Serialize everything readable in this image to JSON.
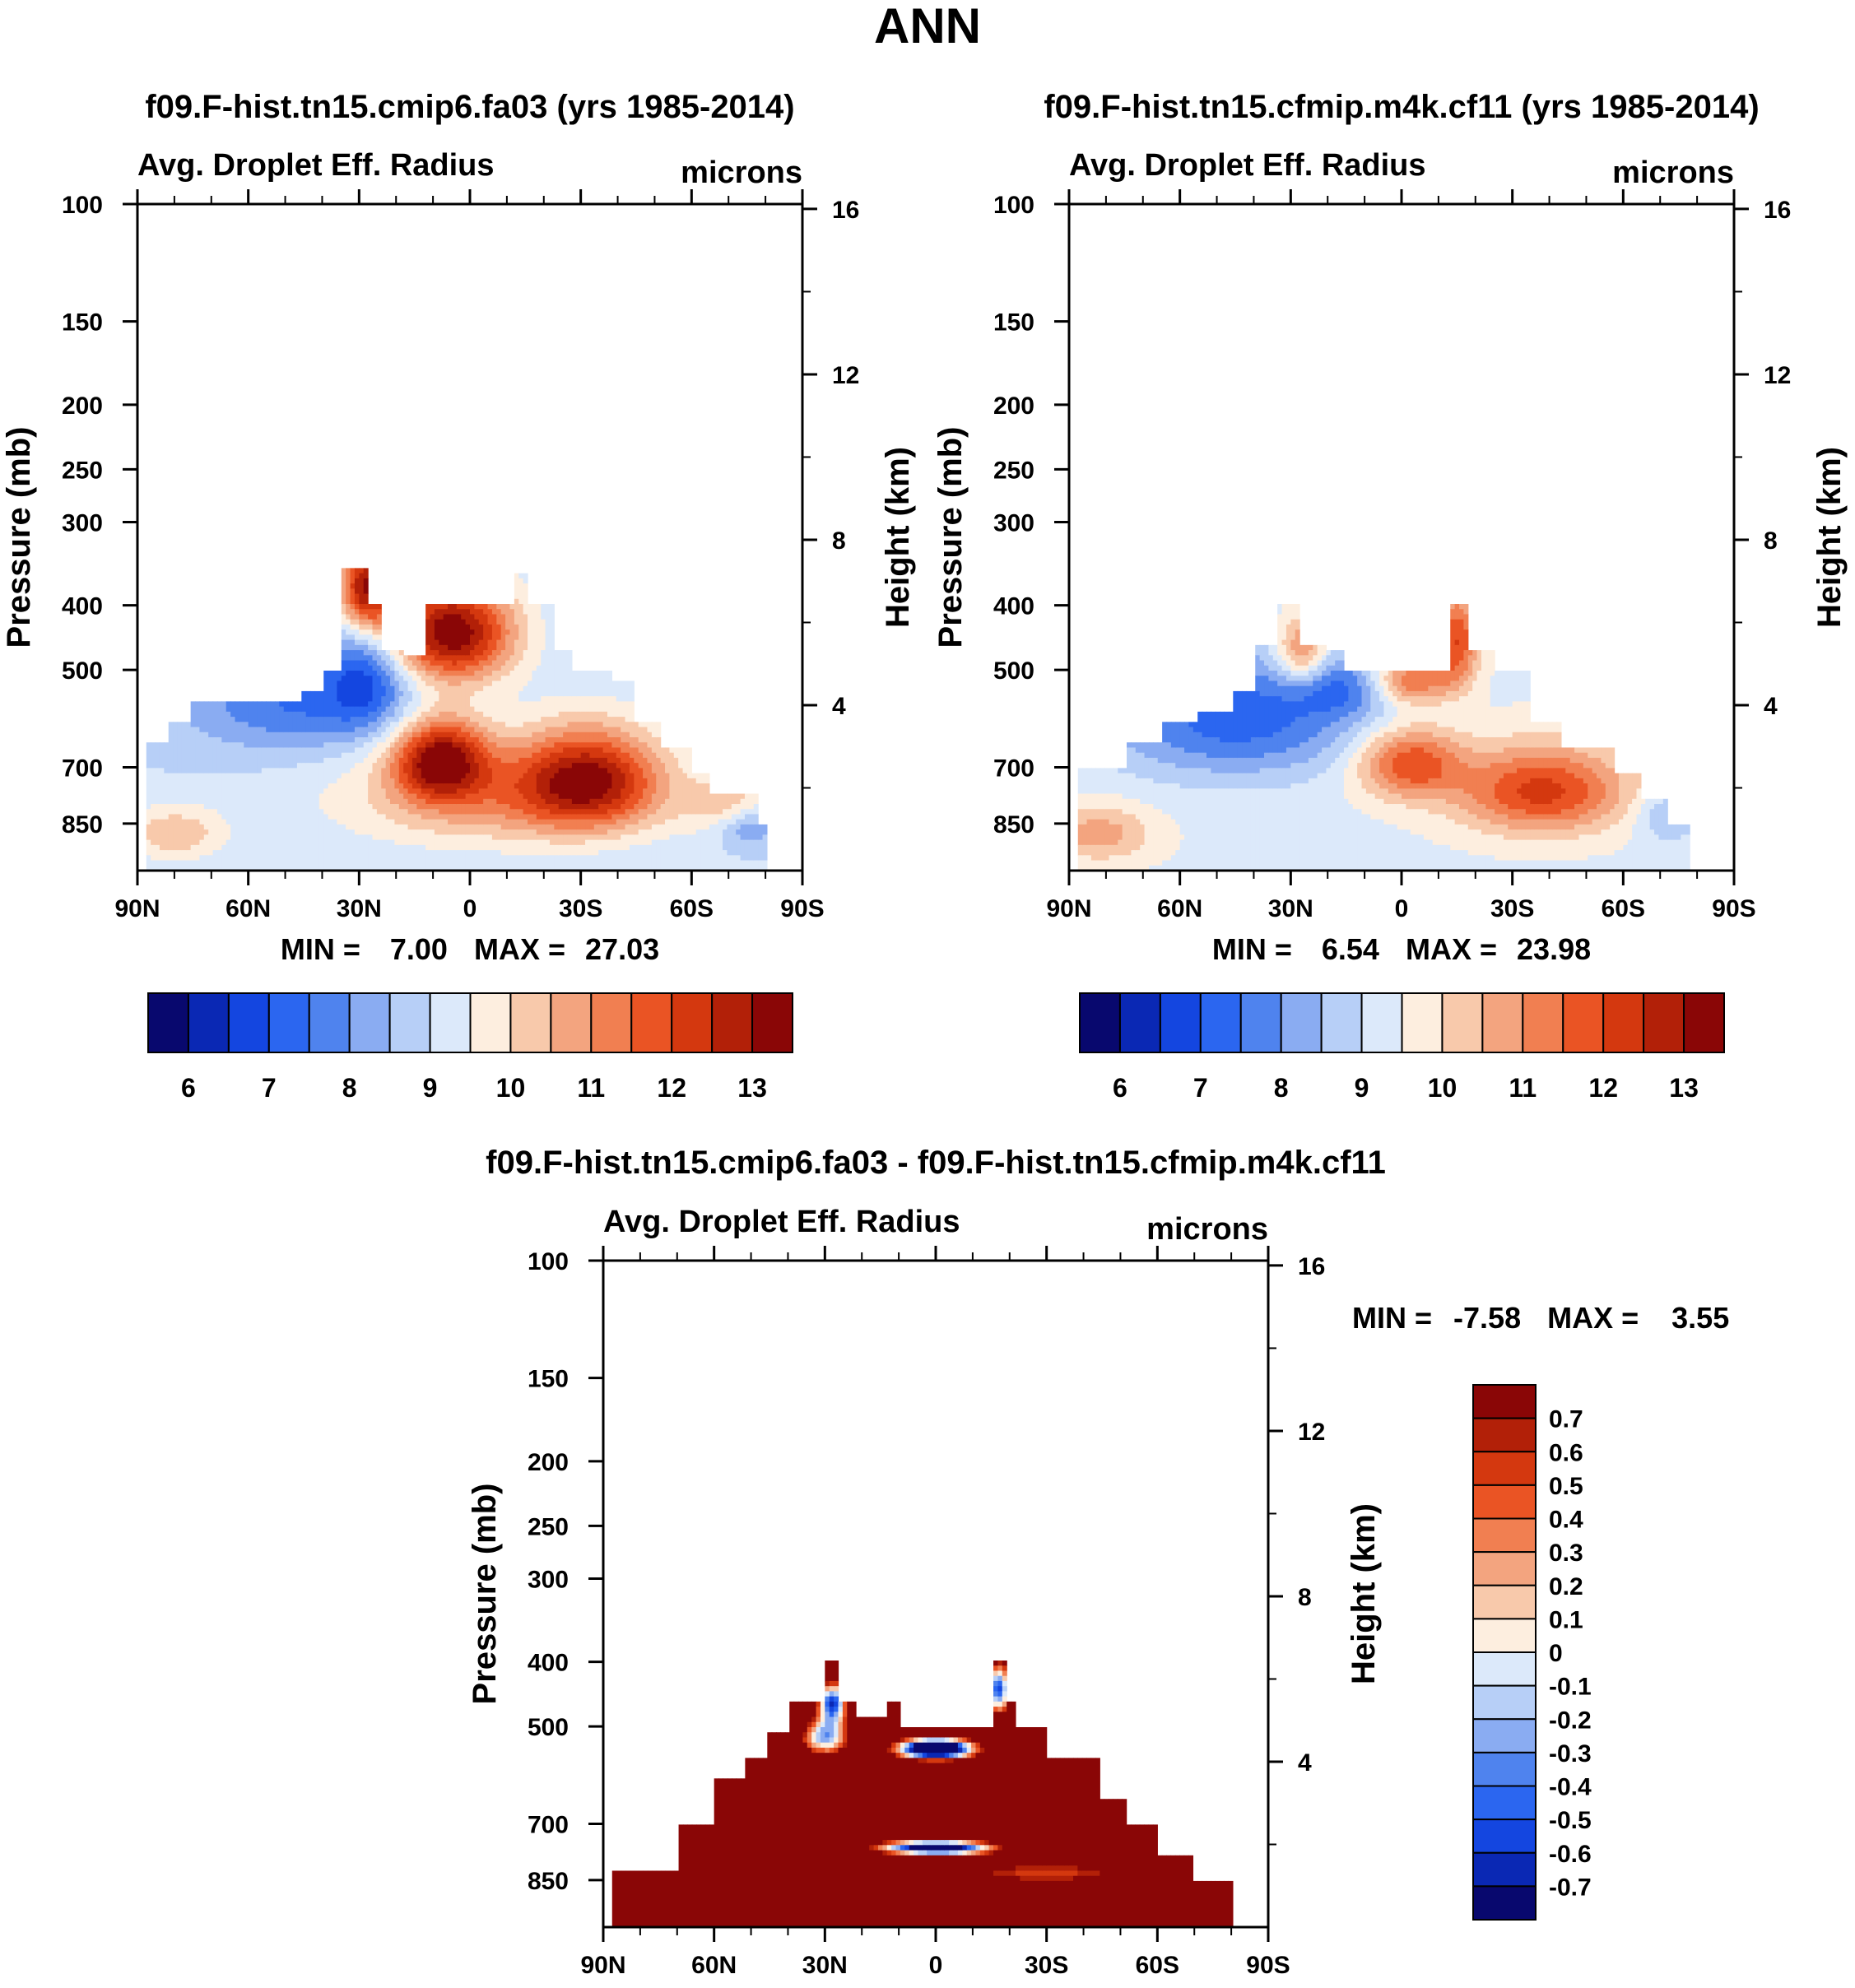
{
  "page": {
    "title": "ANN"
  },
  "chart_data": [
    {
      "type": "heatmap",
      "title": "f09.F-hist.tn15.cmip6.fa03 (yrs 1985-2014)",
      "subtitle_left": "Avg. Droplet Eff. Radius",
      "subtitle_right": "microns",
      "xlabel": "",
      "ylabel": "Pressure (mb)",
      "ylabel_right": "Height (km)",
      "x_ticks": [
        "90N",
        "60N",
        "30N",
        "0",
        "30S",
        "60S",
        "90S"
      ],
      "y_ticks": [
        100,
        150,
        200,
        250,
        300,
        400,
        500,
        700,
        850
      ],
      "y_ticks_right": [
        16,
        12,
        8,
        4
      ],
      "stats": {
        "min_label": "MIN =",
        "min": "7.00",
        "max_label": "MAX =",
        "max": "27.03"
      },
      "colorbar": {
        "orientation": "horizontal",
        "labels": [
          "6",
          "7",
          "8",
          "9",
          "10",
          "11",
          "12",
          "13"
        ],
        "colors": [
          "#08086e",
          "#0a28b4",
          "#1446e0",
          "#2b66f0",
          "#4f83ee",
          "#8aacf2",
          "#b7cff7",
          "#dce9fa",
          "#fdeedf",
          "#f8c9ab",
          "#f3a47f",
          "#f17f51",
          "#ea5424",
          "#d4380f",
          "#b22008",
          "#8a0606"
        ]
      },
      "field": {
        "description": "Max near 700 mb around 10N and 30S; high-level red blobs ~400-500 mb in the tropics; blue over NH subtropics/midlatitudes",
        "zmin": 5.5,
        "zmax": 13.5
      }
    },
    {
      "type": "heatmap",
      "title": "f09.F-hist.tn15.cfmip.m4k.cf11 (yrs 1985-2014)",
      "subtitle_left": "Avg. Droplet Eff. Radius",
      "subtitle_right": "microns",
      "xlabel": "",
      "ylabel": "Pressure (mb)",
      "ylabel_right": "Height (km)",
      "x_ticks": [
        "90N",
        "60N",
        "30N",
        "0",
        "30S",
        "60S",
        "90S"
      ],
      "y_ticks": [
        100,
        150,
        200,
        250,
        300,
        400,
        500,
        700,
        850
      ],
      "y_ticks_right": [
        16,
        12,
        8,
        4
      ],
      "stats": {
        "min_label": "MIN =",
        "min": "6.54",
        "max_label": "MAX =",
        "max": "23.98"
      },
      "colorbar": {
        "orientation": "horizontal",
        "labels": [
          "6",
          "7",
          "8",
          "9",
          "10",
          "11",
          "12",
          "13"
        ],
        "colors": [
          "#08086e",
          "#0a28b4",
          "#1446e0",
          "#2b66f0",
          "#4f83ee",
          "#8aacf2",
          "#b7cff7",
          "#dce9fa",
          "#fdeedf",
          "#f8c9ab",
          "#f3a47f",
          "#f17f51",
          "#ea5424",
          "#d4380f",
          "#b22008",
          "#8a0606"
        ]
      },
      "field": {
        "description": "Weaker lower-tropospheric maximum near 700-850 mb 0-40S; blue over NH midlatitudes 500-700 mb",
        "zmin": 5.5,
        "zmax": 13.5
      }
    },
    {
      "type": "heatmap",
      "title": "f09.F-hist.tn15.cmip6.fa03 - f09.F-hist.tn15.cfmip.m4k.cf11",
      "subtitle_left": "Avg. Droplet Eff. Radius",
      "subtitle_right": "microns",
      "xlabel": "",
      "ylabel": "Pressure (mb)",
      "ylabel_right": "Height (km)",
      "x_ticks": [
        "90N",
        "60N",
        "30N",
        "0",
        "30S",
        "60S",
        "90S"
      ],
      "y_ticks": [
        100,
        150,
        200,
        250,
        300,
        400,
        500,
        700,
        850
      ],
      "y_ticks_right": [
        16,
        12,
        8,
        4
      ],
      "stats": {
        "min_label": "MIN =",
        "min": "-7.58",
        "max_label": "MAX =",
        "max": "3.55"
      },
      "colorbar": {
        "orientation": "vertical",
        "labels": [
          "0.7",
          "0.6",
          "0.5",
          "0.4",
          "0.3",
          "0.2",
          "0.1",
          "0",
          "-0.1",
          "-0.2",
          "-0.3",
          "-0.4",
          "-0.5",
          "-0.6",
          "-0.7"
        ],
        "colors": [
          "#8a0606",
          "#b22008",
          "#d4380f",
          "#ea5424",
          "#f17f51",
          "#f3a47f",
          "#f8c9ab",
          "#fdeedf",
          "#dce9fa",
          "#b7cff7",
          "#8aacf2",
          "#4f83ee",
          "#2b66f0",
          "#1446e0",
          "#0a28b4",
          "#08086e"
        ]
      },
      "field": {
        "description": "Mostly saturated positive (dark red) difference throughout the cloudy region; negative (blue) patches near 450-550 mb tropics and 750 mb equator",
        "zmin": -0.75,
        "zmax": 0.75
      }
    }
  ]
}
